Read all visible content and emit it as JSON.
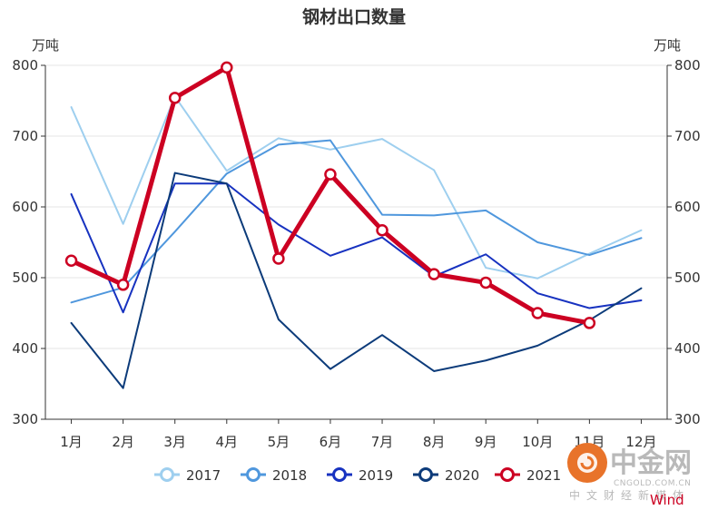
{
  "chart_data": {
    "type": "line",
    "title": "钢材出口数量",
    "unit_left": "万吨",
    "unit_right": "万吨",
    "categories": [
      "1月",
      "2月",
      "3月",
      "4月",
      "5月",
      "6月",
      "7月",
      "8月",
      "9月",
      "10月",
      "11月",
      "12月"
    ],
    "ylim": [
      300,
      800
    ],
    "yticks": [
      300,
      400,
      500,
      600,
      700,
      800
    ],
    "grid": true,
    "legend_position": "bottom",
    "series": [
      {
        "name": "2017",
        "color": "#9ecfef",
        "values": [
          741,
          576,
          756,
          651,
          697,
          681,
          696,
          652,
          514,
          499,
          534,
          567
        ],
        "markers": false,
        "width": 2
      },
      {
        "name": "2018",
        "color": "#4f97dd",
        "values": [
          465,
          486,
          565,
          647,
          688,
          694,
          589,
          588,
          595,
          550,
          532,
          556
        ],
        "markers": false,
        "width": 2
      },
      {
        "name": "2019",
        "color": "#1732c0",
        "values": [
          618,
          451,
          633,
          633,
          575,
          531,
          557,
          502,
          533,
          478,
          457,
          468
        ],
        "markers": false,
        "width": 2
      },
      {
        "name": "2020",
        "color": "#0c3b7a",
        "values": [
          436,
          344,
          648,
          633,
          441,
          371,
          419,
          368,
          383,
          404,
          440,
          485
        ],
        "markers": false,
        "width": 2
      },
      {
        "name": "2021",
        "color": "#cc0022",
        "values": [
          524,
          490,
          754,
          797,
          527,
          646,
          567,
          505,
          493,
          450,
          436,
          null
        ],
        "markers": true,
        "width": 5
      }
    ]
  },
  "watermark": {
    "logo_text": "中金网",
    "url": "CNGOLD.COM.CN",
    "tagline": "中文财经新媒体",
    "logo_color": "#e8732a"
  },
  "source": "Wind"
}
